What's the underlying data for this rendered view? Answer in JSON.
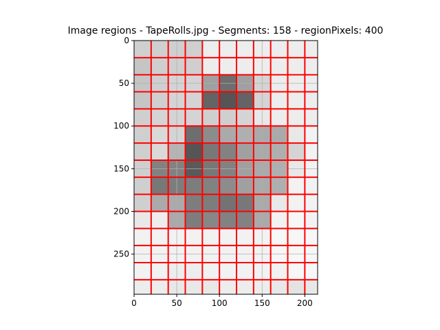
{
  "chart_data": {
    "type": "heatmap",
    "title": "Image regions - TapeRolls.jpg - Segments: 158 - regionPixels: 400",
    "xlabel": "",
    "ylabel": "",
    "x_range": [
      0,
      215
    ],
    "y_range": [
      0,
      297
    ],
    "y_inverted": true,
    "x_ticks": [
      0,
      50,
      100,
      150,
      200
    ],
    "y_ticks": [
      0,
      50,
      100,
      150,
      200,
      250
    ],
    "grid": true,
    "legend": "none",
    "colors": {
      "boundary": "#ff0000",
      "grid": "#b0b0b0",
      "axes": "#000000",
      "background": "#ffffff"
    },
    "grid_columns": [
      0,
      20,
      40,
      60,
      80,
      100,
      120,
      140,
      160,
      180,
      200,
      215
    ],
    "grid_rows": [
      0,
      20,
      40,
      60,
      80,
      100,
      120,
      140,
      160,
      180,
      200,
      220,
      240,
      260,
      280,
      297
    ],
    "cell_gray": [
      [
        207,
        207,
        207,
        207,
        237,
        237,
        237,
        237,
        237,
        237,
        237
      ],
      [
        197,
        207,
        207,
        207,
        237,
        237,
        237,
        237,
        237,
        237,
        237
      ],
      [
        197,
        207,
        212,
        212,
        160,
        110,
        160,
        212,
        237,
        237,
        237
      ],
      [
        197,
        207,
        212,
        212,
        100,
        85,
        100,
        212,
        237,
        237,
        237
      ],
      [
        207,
        212,
        212,
        212,
        207,
        207,
        212,
        232,
        237,
        237,
        237
      ],
      [
        207,
        217,
        212,
        110,
        140,
        170,
        175,
        170,
        170,
        232,
        242
      ],
      [
        207,
        217,
        180,
        85,
        120,
        130,
        160,
        170,
        175,
        212,
        242
      ],
      [
        207,
        130,
        130,
        90,
        120,
        130,
        160,
        170,
        175,
        232,
        242
      ],
      [
        207,
        120,
        125,
        125,
        130,
        140,
        160,
        170,
        175,
        242,
        242
      ],
      [
        207,
        170,
        170,
        125,
        125,
        115,
        120,
        170,
        232,
        242,
        242
      ],
      [
        232,
        237,
        170,
        125,
        135,
        130,
        130,
        170,
        242,
        247,
        242
      ],
      [
        242,
        242,
        242,
        242,
        242,
        242,
        242,
        242,
        247,
        247,
        247
      ],
      [
        242,
        242,
        242,
        242,
        242,
        242,
        242,
        242,
        247,
        247,
        247
      ],
      [
        242,
        242,
        237,
        237,
        242,
        242,
        242,
        242,
        242,
        247,
        247
      ],
      [
        237,
        237,
        232,
        232,
        232,
        237,
        237,
        237,
        232,
        227,
        232
      ]
    ]
  }
}
